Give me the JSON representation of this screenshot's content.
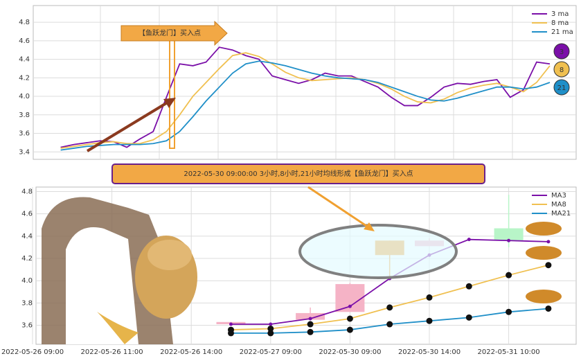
{
  "chart_data": [
    {
      "type": "line",
      "annotation": "【鱼跃龙门】买入点",
      "ylim": [
        3.32,
        4.98
      ],
      "yticks": [
        3.4,
        3.6,
        3.8,
        {
          "value": 4,
          "label": "4.0"
        },
        4.2,
        4.4,
        4.6,
        4.8
      ],
      "grid": true,
      "legend": "upper right",
      "series": [
        {
          "name": "3 ma",
          "badge": "3",
          "color": "#7a0fa8",
          "values": [
            3.45,
            3.48,
            3.5,
            3.52,
            3.51,
            3.45,
            3.54,
            3.62,
            3.99,
            4.35,
            4.33,
            4.37,
            4.53,
            4.5,
            4.44,
            4.4,
            4.22,
            4.18,
            4.14,
            4.18,
            4.25,
            4.22,
            4.22,
            4.16,
            4.1,
            3.99,
            3.9,
            3.9,
            3.99,
            4.1,
            4.14,
            4.13,
            4.16,
            4.18,
            3.99,
            4.07,
            4.37,
            4.35
          ]
        },
        {
          "name": "8 ma",
          "badge": "8",
          "color": "#f0c050",
          "values": [
            3.44,
            3.46,
            3.48,
            3.5,
            3.51,
            3.49,
            3.49,
            3.53,
            3.62,
            3.8,
            4.0,
            4.15,
            4.3,
            4.44,
            4.47,
            4.43,
            4.35,
            4.26,
            4.2,
            4.17,
            4.18,
            4.19,
            4.2,
            4.18,
            4.14,
            4.08,
            4.0,
            3.94,
            3.93,
            3.97,
            4.04,
            4.09,
            4.12,
            4.14,
            4.1,
            4.05,
            4.15,
            4.33
          ]
        },
        {
          "name": "21 ma",
          "badge": "21",
          "color": "#1f8fc8",
          "values": [
            3.42,
            3.44,
            3.46,
            3.47,
            3.48,
            3.48,
            3.48,
            3.49,
            3.52,
            3.62,
            3.78,
            3.95,
            4.1,
            4.25,
            4.35,
            4.38,
            4.36,
            4.33,
            4.29,
            4.25,
            4.22,
            4.2,
            4.19,
            4.18,
            4.15,
            4.1,
            4.05,
            4.0,
            3.96,
            3.95,
            3.98,
            4.02,
            4.06,
            4.1,
            4.1,
            4.08,
            4.1,
            4.15
          ]
        }
      ]
    },
    {
      "type": "candlestick",
      "annotation": "2022-05-30 09:00:00 3小时,8小时,21小时均线形成【鱼跃龙门】买入点",
      "categories": [
        "2022-05-26 09:00",
        null,
        "2022-05-26 11:00",
        null,
        "2022-05-26 14:00",
        null,
        "2022-05-27 09:00",
        null,
        "2022-05-30 09:00",
        null,
        "2022-05-30 14:00",
        null,
        "2022-05-31 10:00",
        null
      ],
      "open": [
        null,
        null,
        null,
        null,
        null,
        3.61,
        null,
        3.65,
        3.72,
        4.23,
        4.31,
        null,
        4.47,
        null
      ],
      "high": [
        null,
        null,
        null,
        null,
        null,
        3.63,
        null,
        3.76,
        3.98,
        4.36,
        4.38,
        null,
        4.77,
        null
      ],
      "low": [
        null,
        null,
        null,
        null,
        null,
        3.61,
        null,
        3.65,
        3.72,
        4.02,
        4.31,
        null,
        4.3,
        null
      ],
      "close": [
        null,
        null,
        null,
        null,
        null,
        3.63,
        null,
        3.71,
        3.97,
        4.36,
        4.36,
        null,
        4.36,
        null
      ],
      "colors": [
        null,
        null,
        null,
        null,
        null,
        "#f5b3c6",
        null,
        "#f5b3c6",
        "#f5b3c6",
        "#f2a33a",
        "#f5b3c6",
        null,
        "#b8f5c8",
        null
      ],
      "ylim": [
        3.43,
        4.84
      ],
      "yticks": [
        3.6,
        3.8,
        {
          "value": 4,
          "label": "4.0"
        },
        4.2,
        4.4,
        4.6,
        4.8
      ],
      "grid": true,
      "legend": "upper right",
      "series": [
        {
          "name": "MA3",
          "color": "#7a0fa8",
          "values": [
            null,
            null,
            null,
            null,
            null,
            3.61,
            3.61,
            3.66,
            3.77,
            4.02,
            4.23,
            4.37,
            4.36,
            4.35
          ]
        },
        {
          "name": "MA8",
          "color": "#f0c050",
          "values": [
            null,
            null,
            null,
            null,
            null,
            3.56,
            3.57,
            3.61,
            3.66,
            3.76,
            3.85,
            3.95,
            4.05,
            4.14
          ]
        },
        {
          "name": "MA21",
          "color": "#1f8fc8",
          "values": [
            null,
            null,
            null,
            null,
            null,
            3.53,
            3.53,
            3.54,
            3.56,
            3.61,
            3.64,
            3.67,
            3.72,
            3.75
          ]
        }
      ]
    }
  ]
}
